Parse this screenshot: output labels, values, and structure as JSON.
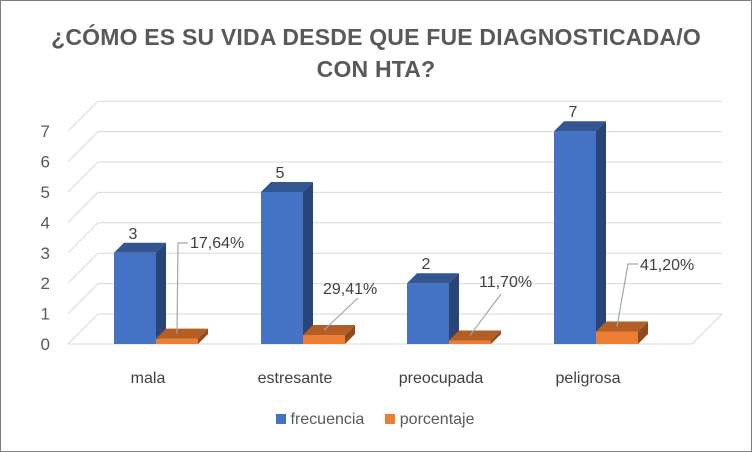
{
  "chart_data": {
    "type": "bar",
    "title": "¿CÓMO ES SU VIDA DESDE QUE FUE DIAGNOSTICADA/O CON HTA?",
    "categories": [
      "mala",
      "estresante",
      "preocupada",
      "peligrosa"
    ],
    "series": [
      {
        "name": "frecuencia",
        "values": [
          3,
          5,
          2,
          7
        ],
        "labels": [
          "3",
          "5",
          "2",
          "7"
        ],
        "color": "#4472C4"
      },
      {
        "name": "porcentaje",
        "values": [
          0.1764,
          0.2941,
          0.117,
          0.412
        ],
        "labels": [
          "17,64%",
          "29,41%",
          "11,70%",
          "41,20%"
        ],
        "color": "#ED7D31"
      }
    ],
    "y_ticks": [
      "0",
      "1",
      "2",
      "3",
      "4",
      "5",
      "6",
      "7"
    ],
    "ylim": [
      0,
      7
    ],
    "grid": true,
    "style": "3d-clustered-column",
    "legend_position": "bottom"
  }
}
